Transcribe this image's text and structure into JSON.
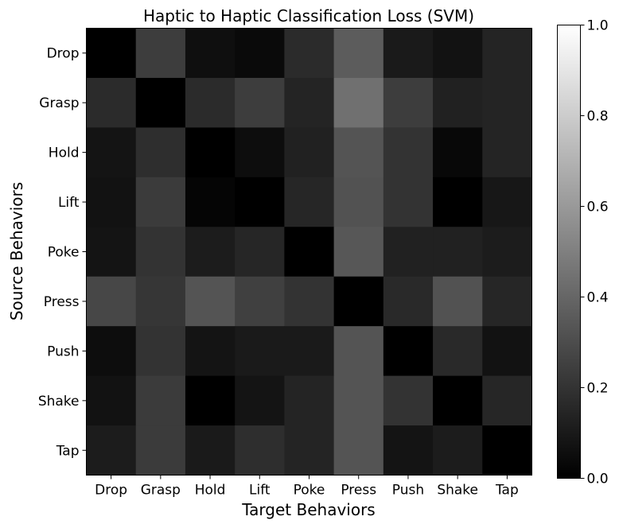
{
  "chart_data": {
    "type": "heatmap",
    "title": "Haptic to Haptic Classification Loss (SVM)",
    "xlabel": "Target Behaviors",
    "ylabel": "Source Behaviors",
    "x_categories": [
      "Drop",
      "Grasp",
      "Hold",
      "Lift",
      "Poke",
      "Press",
      "Push",
      "Shake",
      "Tap"
    ],
    "y_categories": [
      "Drop",
      "Grasp",
      "Hold",
      "Lift",
      "Poke",
      "Press",
      "Push",
      "Shake",
      "Tap"
    ],
    "values": [
      [
        0.0,
        0.24,
        0.06,
        0.04,
        0.17,
        0.36,
        0.1,
        0.07,
        0.14
      ],
      [
        0.17,
        0.0,
        0.17,
        0.24,
        0.14,
        0.44,
        0.24,
        0.13,
        0.14
      ],
      [
        0.08,
        0.18,
        0.0,
        0.05,
        0.13,
        0.33,
        0.2,
        0.03,
        0.14
      ],
      [
        0.07,
        0.23,
        0.02,
        0.0,
        0.15,
        0.32,
        0.2,
        0.0,
        0.09
      ],
      [
        0.08,
        0.2,
        0.11,
        0.15,
        0.0,
        0.34,
        0.13,
        0.13,
        0.11
      ],
      [
        0.28,
        0.21,
        0.33,
        0.25,
        0.2,
        0.0,
        0.16,
        0.32,
        0.15
      ],
      [
        0.05,
        0.2,
        0.08,
        0.1,
        0.1,
        0.33,
        0.0,
        0.16,
        0.07
      ],
      [
        0.07,
        0.23,
        0.0,
        0.08,
        0.14,
        0.33,
        0.2,
        0.0,
        0.15
      ],
      [
        0.11,
        0.23,
        0.1,
        0.18,
        0.14,
        0.33,
        0.08,
        0.11,
        0.0
      ]
    ],
    "colormap": "gray",
    "vmin": 0.0,
    "vmax": 1.0,
    "colorbar_ticks": [
      "0.0",
      "0.2",
      "0.4",
      "0.6",
      "0.8",
      "1.0"
    ],
    "grid": false
  }
}
